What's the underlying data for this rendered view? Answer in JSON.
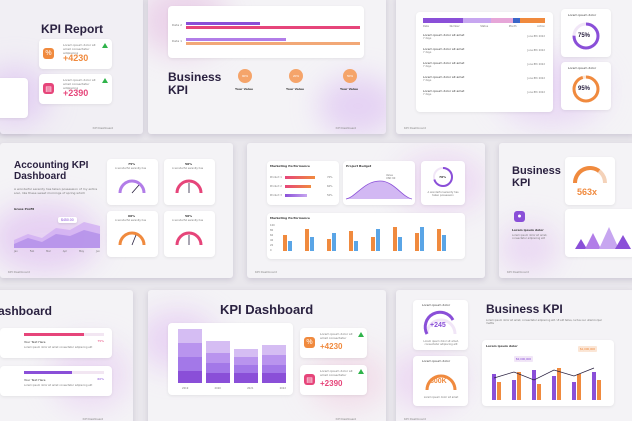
{
  "colors": {
    "orange": "#f08a3e",
    "pink": "#e6457a",
    "purple": "#8a4fd8",
    "lavender": "#c7a6f0",
    "green": "#2fb34a"
  },
  "slide1": {
    "text": [
      "ipsum dolor",
      "sit amet",
      "ipsum dolor",
      "sit amet"
    ]
  },
  "slide2": {
    "title": "KPI Report",
    "card1": {
      "text": "Lorem ipsum dolor sit amet consectetur adipiscing",
      "value": "+4230",
      "icon": "percent-icon"
    },
    "card2": {
      "text": "Lorem ipsum dolor sit amet consectetur adipiscing",
      "value": "+2390",
      "icon": "document-icon"
    },
    "footer": "KPI Dashboard"
  },
  "slide3": {
    "bar_labels": [
      "Data 2",
      "Data 1"
    ],
    "title_line1": "Business",
    "title_line2": "KPI",
    "kpis": [
      {
        "value": "90%",
        "label": "Your Value"
      },
      {
        "value": "20%",
        "label": "Your Value"
      },
      {
        "value": "50%",
        "label": "Your Value"
      }
    ],
    "footer": "KPI Dashboard"
  },
  "slide4": {
    "table_headers": [
      "Data",
      "Number",
      "Status",
      "Month",
      "Action"
    ],
    "rows": [
      {
        "text": "Lorem ipsum dolor sit amet",
        "sub": "7 days",
        "date": "June 8th 2022"
      },
      {
        "text": "Lorem ipsum dolor sit amet",
        "sub": "7 days",
        "date": "June 8th 2022"
      },
      {
        "text": "Lorem ipsum dolor sit amet",
        "sub": "7 days",
        "date": "June 8th 2022"
      },
      {
        "text": "Lorem ipsum dolor sit amet",
        "sub": "7 days",
        "date": "June 8th 2022"
      },
      {
        "text": "Lorem ipsum dolor sit amet",
        "sub": "7 days",
        "date": "June 8th 2022"
      }
    ],
    "gauge1": {
      "label": "Lorem ipsum dolor",
      "value": "75%"
    },
    "gauge2": {
      "label": "Lorem ipsum dolor",
      "value": "95%"
    },
    "footer": "KPI Dashboard"
  },
  "slide5": {
    "title_line1": "Accounting KPI",
    "title_line2": "Dashboard",
    "desc": "A wonderful serenity has taken possession of my entire soul, like these sweet mornings of spring which",
    "gross_label": "Gross Profit",
    "tooltip": "$450.00",
    "months": [
      "Jan",
      "Feb",
      "Mar",
      "Apr",
      "May",
      "Jun"
    ],
    "gauges": [
      {
        "value": "75%",
        "label": "A wonderful serenity has"
      },
      {
        "value": "50%",
        "label": "A wonderful serenity has"
      },
      {
        "value": "60%",
        "label": "A wonderful serenity has"
      },
      {
        "value": "50%",
        "label": "A wonderful serenity has"
      }
    ],
    "footer": "KPI Dashboard"
  },
  "slide6": {
    "marketing_title": "Marketing Performance",
    "progress_labels": [
      "Product 1",
      "Product 2",
      "Product 3"
    ],
    "progress_values": [
      "70%",
      "60%",
      "50%"
    ],
    "budget_title": "Project Budget",
    "budget_tooltip": "Value\nUSD 90",
    "ring_value": "70%",
    "ring_text": "A wonderful serenity has taken possession",
    "bars_title": "Marketing Performance",
    "y_ticks": [
      "100",
      "80",
      "60",
      "40",
      "20",
      "0"
    ],
    "footer": "KPI Dashboard"
  },
  "slide7": {
    "title_line1": "Business",
    "title_line2": "KPI",
    "gauge_value": "563x",
    "items": [
      {
        "label": "Lorem ipsum dolor",
        "text": "Lorem ipsum dolor sit amet, consectetur adipiscing elit"
      }
    ],
    "footer": "KPI Dashboard"
  },
  "slide8": {
    "title": "ashboard",
    "rows": [
      {
        "text": "Your Text Here",
        "value": "75%",
        "sub": "Lorem ipsum dolor sit amet consectetur adipiscing elit"
      },
      {
        "text": "Your Text Here",
        "value": "60%",
        "sub": "Lorem ipsum dolor sit amet consectetur adipiscing elit"
      }
    ],
    "footer": "KPI Dashboard"
  },
  "slide9": {
    "title": "KPI Dashboard",
    "stack_categories": [
      "2019",
      "2020",
      "2021",
      "2022"
    ],
    "card1": {
      "text": "Lorem ipsum dolor sit amet consectetur",
      "value": "+4230"
    },
    "card2": {
      "text": "Lorem ipsum dolor sit amet consectetur",
      "value": "+2390"
    },
    "footer": "KPI Dashboard"
  },
  "slide10": {
    "gauge1": {
      "label": "Lorem ipsum dolor",
      "value": "+245",
      "text": "Lorem ipsum dolor sit amet, consectetur adipiscing elit"
    },
    "gauge2": {
      "label": "Lorem ipsum dolor",
      "value": "800K",
      "text": "Lorem ipsum dolor sit amet"
    },
    "title": "Business KPI",
    "desc": "Lorem ipsum dolor sit amet, consectetur adipiscing elit. Ut elit tellus, luctus nec ullamcorper mattis",
    "chart_title": "Lorem ipsum dolor",
    "tag1": "$3,000,000",
    "tag2": "$1,000,000",
    "footer": "KPI Dashboard"
  }
}
